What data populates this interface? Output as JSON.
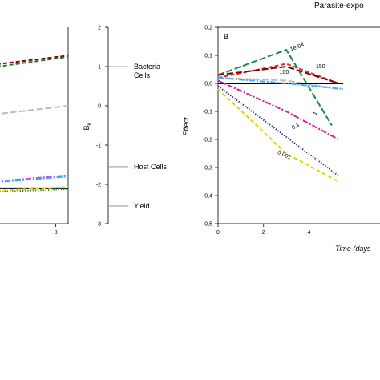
{
  "figure_title": "Parasite-expo",
  "chart_data": [
    {
      "panel": "left",
      "type": "line",
      "x_tick_labels": [
        "8"
      ],
      "xlim": [
        4.5,
        8.6
      ],
      "ylim": [
        -3,
        2
      ],
      "series": [
        {
          "color": "#8b0000",
          "dash": "dash",
          "points": [
            [
              4.5,
              1.02
            ],
            [
              8.6,
              1.28
            ]
          ]
        },
        {
          "color": "#1a7a3a",
          "dash": "dash",
          "points": [
            [
              4.5,
              0.95
            ],
            [
              8.6,
              1.25
            ]
          ]
        },
        {
          "color": "#bbbbbb",
          "dash": "longdash",
          "points": [
            [
              4.5,
              -0.25
            ],
            [
              8.6,
              -0.0
            ]
          ]
        },
        {
          "color": "#cc44cc",
          "dash": "dashdot",
          "points": [
            [
              4.5,
              -1.95
            ],
            [
              8.6,
              -1.77
            ]
          ]
        },
        {
          "color": "#44aaff",
          "dash": "dashdot",
          "points": [
            [
              4.5,
              -1.97
            ],
            [
              8.6,
              -1.8
            ]
          ]
        },
        {
          "color": "#000000",
          "dash": "solid",
          "points": [
            [
              4.5,
              -2.1
            ],
            [
              8.6,
              -2.1
            ]
          ]
        },
        {
          "color": "#e6d400",
          "dash": "dash",
          "points": [
            [
              4.5,
              -2.18
            ],
            [
              8.6,
              -2.07
            ]
          ]
        },
        {
          "color": "#1a7a3a",
          "dash": "dot",
          "points": [
            [
              4.5,
              -2.2
            ],
            [
              8.6,
              -2.12
            ]
          ]
        }
      ]
    },
    {
      "panel": "middle-scale",
      "type": "scale",
      "ylabel": "B",
      "ylabel_sub": "k",
      "ylim": [
        -3,
        2
      ],
      "yticks": [
        2,
        1,
        0,
        -1,
        -2,
        -3
      ],
      "markers": [
        {
          "value": 1.0,
          "label_lines": [
            "Bacteria",
            "Cells"
          ]
        },
        {
          "value": -1.55,
          "label_lines": [
            "Host Cells"
          ]
        },
        {
          "value": -2.55,
          "label_lines": [
            "Yield"
          ]
        }
      ]
    },
    {
      "panel": "B",
      "panel_label": "B",
      "type": "line",
      "xlabel": "Time (days",
      "ylabel": "Effect",
      "xlim": [
        0,
        7.4
      ],
      "ylim": [
        -0.5,
        0.2
      ],
      "xticks": [
        0,
        2,
        4
      ],
      "yticks": [
        0.2,
        0.1,
        0.0,
        -0.1,
        -0.2,
        -0.3,
        -0.4,
        -0.5
      ],
      "ytick_labels": [
        "0,2",
        "0,1",
        "0,0",
        "-0,1",
        "-0,2",
        "-0,3",
        "-0,4",
        "-0,5"
      ],
      "series": [
        {
          "color": "#1a8a4a",
          "dash": "longdash",
          "label": "1e-04",
          "points": [
            [
              0,
              0.03
            ],
            [
              3,
              0.12
            ],
            [
              5,
              -0.15
            ]
          ]
        },
        {
          "color": "#cc3333",
          "dash": "dash",
          "label": "150",
          "points": [
            [
              0,
              0.02
            ],
            [
              3,
              0.07
            ],
            [
              5.3,
              0.0
            ]
          ]
        },
        {
          "color": "#8b0000",
          "dash": "longdash",
          "label": "100",
          "points": [
            [
              0,
              0.03
            ],
            [
              3,
              0.06
            ],
            [
              5.3,
              0.0
            ]
          ]
        },
        {
          "color": "#bbbbbb",
          "dash": "longdash",
          "label": "",
          "points": [
            [
              0,
              0.02
            ],
            [
              3,
              0.01
            ],
            [
              5.3,
              -0.02
            ]
          ]
        },
        {
          "color": "#000000",
          "dash": "solid",
          "label": "",
          "points": [
            [
              0,
              0.0
            ],
            [
              5.5,
              0.0
            ]
          ]
        },
        {
          "color": "#44aaff",
          "dash": "dashdot",
          "label": "",
          "points": [
            [
              0,
              0.02
            ],
            [
              3,
              0.0
            ],
            [
              5.5,
              -0.02
            ]
          ]
        },
        {
          "color": "#cc2299",
          "dash": "dashdot",
          "label": "1",
          "points": [
            [
              0,
              0.01
            ],
            [
              3,
              -0.1
            ],
            [
              5.3,
              -0.2
            ]
          ]
        },
        {
          "color": "#222288",
          "dash": "dot",
          "label": "0,1",
          "points": [
            [
              0,
              -0.01
            ],
            [
              5.3,
              -0.33
            ]
          ]
        },
        {
          "color": "#e6d400",
          "dash": "dash",
          "label": "0,001",
          "points": [
            [
              0,
              -0.02
            ],
            [
              3,
              -0.25
            ],
            [
              5.3,
              -0.35
            ]
          ]
        }
      ]
    }
  ]
}
